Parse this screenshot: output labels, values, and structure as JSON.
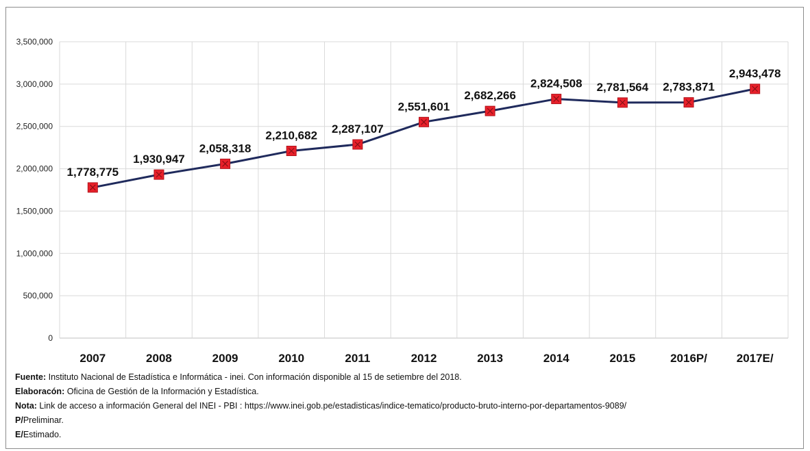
{
  "chart_data": {
    "type": "line",
    "categories": [
      "2007",
      "2008",
      "2009",
      "2010",
      "2011",
      "2012",
      "2013",
      "2014",
      "2015",
      "2016P/",
      "2017E/"
    ],
    "values": [
      1778775,
      1930947,
      2058318,
      2210682,
      2287107,
      2551601,
      2682266,
      2824508,
      2781564,
      2783871,
      2943478
    ],
    "data_labels": [
      "1,778,775",
      "1,930,947",
      "2,058,318",
      "2,210,682",
      "2,287,107",
      "2,551,601",
      "2,682,266",
      "2,824,508",
      "2,781,564",
      "2,783,871",
      "2,943,478"
    ],
    "yticks": [
      0,
      500000,
      1000000,
      1500000,
      2000000,
      2500000,
      3000000,
      3500000
    ],
    "ytick_labels": [
      "0",
      "500,000",
      "1,000,000",
      "1,500,000",
      "2,000,000",
      "2,500,000",
      "3,000,000",
      "3,500,000"
    ],
    "ylim": [
      0,
      3500000
    ],
    "title": "",
    "xlabel": "",
    "ylabel": "",
    "grid": true,
    "legend": "none",
    "colors": {
      "line": "#1f2a5c",
      "marker": "#e8202a",
      "marker_edge": "#b0141c",
      "grid": "#d9d9d9"
    }
  },
  "notes": [
    {
      "bold": "Fuente:",
      "text": " Instituto Nacional de Estadística e Informática - inei. Con información disponible  al 15 de setiembre del 2018."
    },
    {
      "bold": "Elaboracón:",
      "text": " Oficina de Gestión de la Información y Estadística."
    },
    {
      "bold": "Nota:",
      "text": " Link de acceso a información General del INEI - PBI : https://www.inei.gob.pe/estadisticas/indice-tematico/producto-bruto-interno-por-departamentos-9089/"
    },
    {
      "bold": "P/",
      "text": "Preliminar."
    },
    {
      "bold": "E/",
      "text": "Estimado."
    }
  ]
}
